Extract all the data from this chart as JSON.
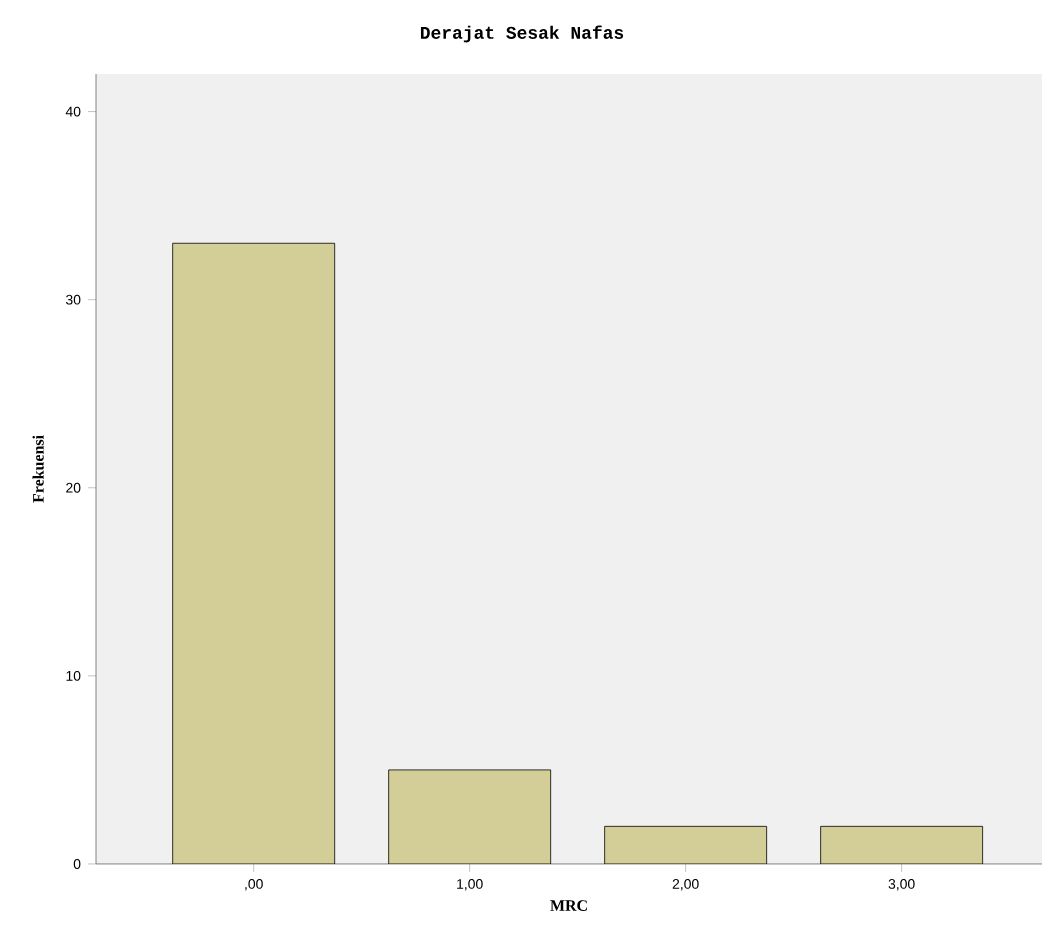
{
  "chart_data": {
    "type": "bar",
    "title": "Derajat Sesak Nafas",
    "xlabel": "MRC",
    "ylabel": "Frekuensi",
    "categories": [
      ",00",
      "1,00",
      "2,00",
      "3,00"
    ],
    "values": [
      33,
      5,
      2,
      2
    ],
    "color": "#d3ce97",
    "ylim": [
      0,
      42
    ],
    "yticks": [
      0,
      10,
      20,
      30,
      40
    ],
    "grid": false
  }
}
